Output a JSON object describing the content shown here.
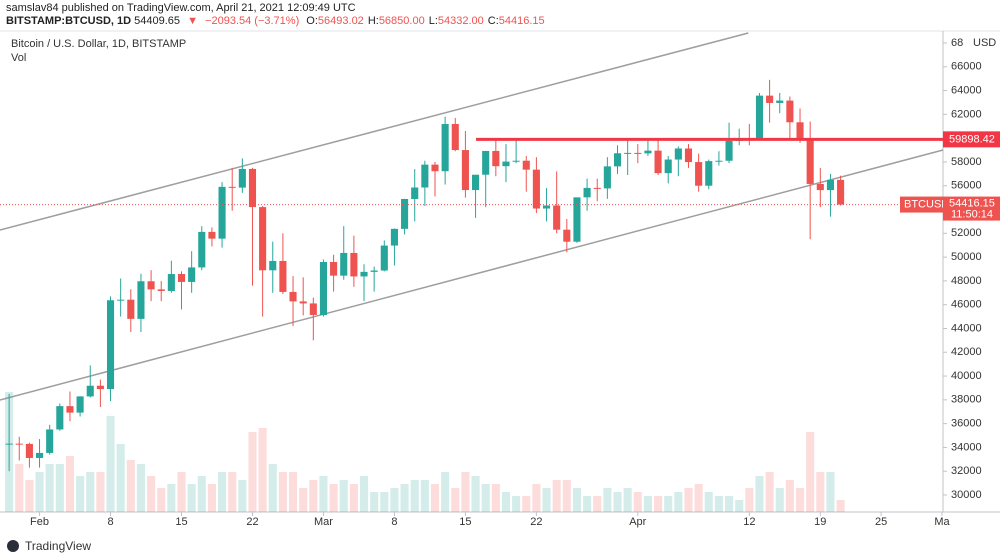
{
  "header": {
    "author_line": "samslav84 published on TradingView.com, April 21, 2021 12:09:49 UTC",
    "symbol": "BITSTAMP:BTCUSD, 1D",
    "last": "54409.65",
    "change": "−2093.54 (−3.71%)",
    "ohlc": [
      {
        "label": "O:",
        "value": "56493.02"
      },
      {
        "label": "H:",
        "value": "56850.00"
      },
      {
        "label": "L:",
        "value": "54332.00"
      },
      {
        "label": "C:",
        "value": "54416.15"
      }
    ]
  },
  "chart_data": {
    "type": "candlestick",
    "title": "Bitcoin / U.S. Dollar, 1D, BITSTAMP",
    "volume_label": "Vol",
    "open": [
      34262,
      34318,
      34295,
      33114,
      33537,
      35510,
      37472,
      36926,
      38289,
      39186,
      38903,
      46374,
      46420,
      44807,
      47969,
      47287,
      47153,
      48577,
      47911,
      49133,
      52119,
      51552,
      55906,
      55841,
      57412,
      54204,
      48891,
      49676,
      47073,
      46276,
      46106,
      45135,
      49587,
      48440,
      50349,
      48374,
      48758,
      48872,
      50971,
      52375,
      54884,
      55851,
      57773,
      57221,
      61188,
      59000,
      55638,
      56926,
      58924,
      57644,
      58030,
      58102,
      57351,
      54083,
      54340,
      52303,
      51293,
      55025,
      55817,
      55777,
      57628,
      58731,
      58760,
      58720,
      58950,
      57059,
      58202,
      59130,
      57990,
      56000,
      58070,
      58100,
      59770,
      59980,
      59840,
      63575,
      62959,
      63159,
      61334,
      60006,
      56150,
      55633,
      56493.02
    ],
    "high": [
      38500,
      34900,
      34400,
      34700,
      35900,
      37700,
      38700,
      38300,
      40900,
      39700,
      46700,
      48200,
      47300,
      48600,
      48900,
      48000,
      49700,
      48800,
      50500,
      52600,
      52500,
      56300,
      57500,
      58300,
      57500,
      54300,
      51300,
      52000,
      48400,
      48300,
      46600,
      49800,
      50200,
      52600,
      51800,
      49400,
      49200,
      51400,
      52400,
      54900,
      57400,
      58100,
      58000,
      61800,
      61700,
      60600,
      56900,
      58900,
      60000,
      59500,
      59900,
      58500,
      58400,
      55800,
      57200,
      53200,
      55000,
      56600,
      56600,
      58400,
      59400,
      59800,
      59500,
      60000,
      59800,
      58500,
      59300,
      59500,
      58700,
      58200,
      58900,
      61300,
      60800,
      61200,
      63800,
      64900,
      63800,
      63500,
      62500,
      61400,
      57500,
      57000,
      56850
    ],
    "low": [
      32000,
      32900,
      32300,
      32300,
      33400,
      35400,
      36200,
      36600,
      38200,
      37400,
      37900,
      45000,
      43700,
      43700,
      46300,
      46300,
      47000,
      45600,
      47000,
      48900,
      50900,
      50800,
      53900,
      55400,
      47600,
      45000,
      47000,
      46900,
      44200,
      45100,
      43000,
      45000,
      47100,
      48100,
      47500,
      46300,
      47100,
      48800,
      49300,
      51900,
      53000,
      54300,
      55100,
      56100,
      58900,
      55000,
      53300,
      54200,
      56800,
      56300,
      57900,
      55500,
      53700,
      53000,
      52000,
      50400,
      51200,
      53900,
      54700,
      54900,
      57000,
      56900,
      57900,
      58500,
      56900,
      56200,
      56800,
      57500,
      55500,
      55700,
      57700,
      57900,
      59400,
      59400,
      59800,
      61300,
      62100,
      60000,
      59600,
      51500,
      54200,
      53400,
      54332
    ],
    "close": [
      34318,
      34295,
      33114,
      33537,
      35510,
      37472,
      36926,
      38289,
      39186,
      38903,
      46374,
      46420,
      44807,
      47969,
      47287,
      47153,
      48577,
      47911,
      49133,
      52119,
      51552,
      55906,
      55841,
      57412,
      54204,
      48891,
      49676,
      47073,
      46276,
      46106,
      45135,
      49587,
      48440,
      50349,
      48374,
      48758,
      48872,
      50971,
      52375,
      54884,
      55851,
      57773,
      57221,
      61188,
      59000,
      55638,
      56926,
      58924,
      57644,
      58030,
      58102,
      57351,
      54083,
      54340,
      52303,
      51293,
      55025,
      55817,
      55777,
      57628,
      58731,
      58760,
      58720,
      58950,
      57059,
      58202,
      59130,
      57990,
      56000,
      58070,
      58100,
      59770,
      59980,
      59840,
      63575,
      62959,
      63159,
      61334,
      60006,
      56150,
      55633,
      56493.02,
      54416.15
    ],
    "volume": [
      30000,
      12000,
      8000,
      10000,
      12000,
      12000,
      14000,
      9000,
      10000,
      10000,
      24000,
      17000,
      13000,
      12000,
      9000,
      6000,
      7000,
      10000,
      7000,
      9000,
      7000,
      10000,
      10000,
      8000,
      20000,
      21000,
      12000,
      10000,
      10000,
      6000,
      8000,
      9000,
      7000,
      8000,
      7000,
      9000,
      5000,
      5000,
      6000,
      7000,
      8000,
      8000,
      7000,
      10000,
      6000,
      10000,
      9000,
      7000,
      7000,
      5000,
      4000,
      4000,
      7000,
      6000,
      8000,
      8000,
      6000,
      4000,
      4000,
      6000,
      5000,
      6000,
      5000,
      4000,
      4000,
      4000,
      5000,
      6000,
      7000,
      5000,
      4000,
      4000,
      3000,
      6000,
      9000,
      10000,
      6000,
      8000,
      6000,
      20000,
      10000,
      10000,
      3000
    ],
    "volume_ylim": [
      0,
      30000
    ],
    "up_color": "#26a69a",
    "down_color": "#ef5350",
    "xlim": [
      -0.9,
      92.1
    ],
    "xticks": [
      {
        "value": 3,
        "label": "Feb"
      },
      {
        "value": 10,
        "label": "8"
      },
      {
        "value": 17,
        "label": "15"
      },
      {
        "value": 24,
        "label": "22"
      },
      {
        "value": 31,
        "label": "Mar"
      },
      {
        "value": 38,
        "label": "8"
      },
      {
        "value": 45,
        "label": "15"
      },
      {
        "value": 52,
        "label": "22"
      },
      {
        "value": 62,
        "label": "Apr"
      },
      {
        "value": 73,
        "label": "12"
      },
      {
        "value": 80,
        "label": "19"
      },
      {
        "value": 86,
        "label": "25"
      },
      {
        "value": 92,
        "label": "Ma"
      }
    ],
    "ylim": [
      28571,
      68840
    ],
    "yticks": [
      30000,
      32000,
      34000,
      36000,
      38000,
      40000,
      42000,
      44000,
      46000,
      48000,
      50000,
      52000,
      54000,
      56000,
      58000,
      60000,
      62000,
      64000,
      66000,
      {
        "value": 68000,
        "label": "68"
      }
    ],
    "currency": "USD",
    "trendlines": [
      {
        "x": [
          -0.9,
          72.9
        ],
        "y": [
          52278,
          68840
        ]
      },
      {
        "x": [
          -0.9,
          92.1
        ],
        "y": [
          37987,
          59004
        ]
      }
    ],
    "trendline_color": "#9e9e9e",
    "hline": {
      "x": 46.05,
      "value": 59898.42,
      "color": "#f23645"
    },
    "symbol_tag": "BTCUSD",
    "countdown": "11:50:14"
  },
  "footer": "TradingView"
}
